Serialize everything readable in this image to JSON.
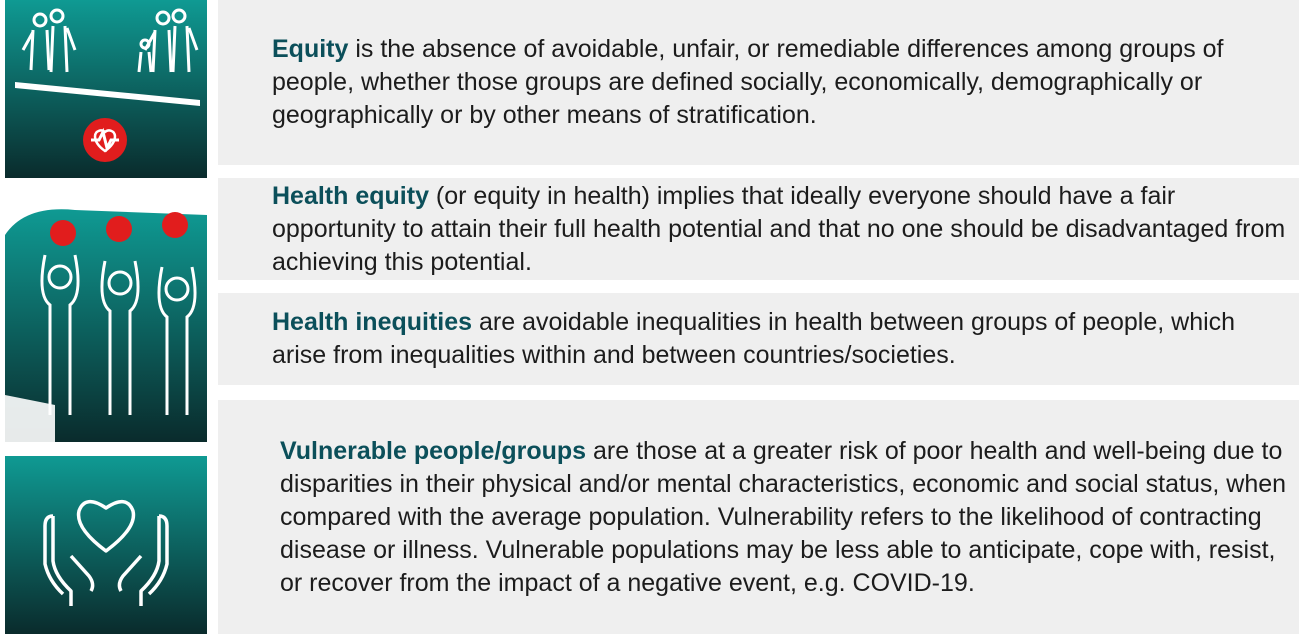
{
  "definitions": [
    {
      "term": "Equity",
      "text": " is the absence of avoidable, unfair, or remediable differences among groups of people, whether those groups are defined socially, economically, demographically or geographically or by other means of stratification."
    },
    {
      "term": "Health equity",
      "text": " (or equity in health) implies that ideally everyone should have a fair opportunity to attain their full health potential and that no one should be disadvantaged from achieving this potential."
    },
    {
      "term": "Health inequities",
      "text": " are avoidable inequalities in health between groups of people, which arise from inequalities within and between countries/societies."
    },
    {
      "term": "Vulnerable people/groups",
      "text": " are those at a greater risk of poor health and well-being due to disparities in their physical and/or mental characteristics, economic and social status, when compared with the average population. Vulnerability refers to the likelihood of contracting disease or illness. Vulnerable populations may be less able to anticipate, cope with, resist, or recover from the impact of a negative event, e.g. COVID-19."
    }
  ]
}
